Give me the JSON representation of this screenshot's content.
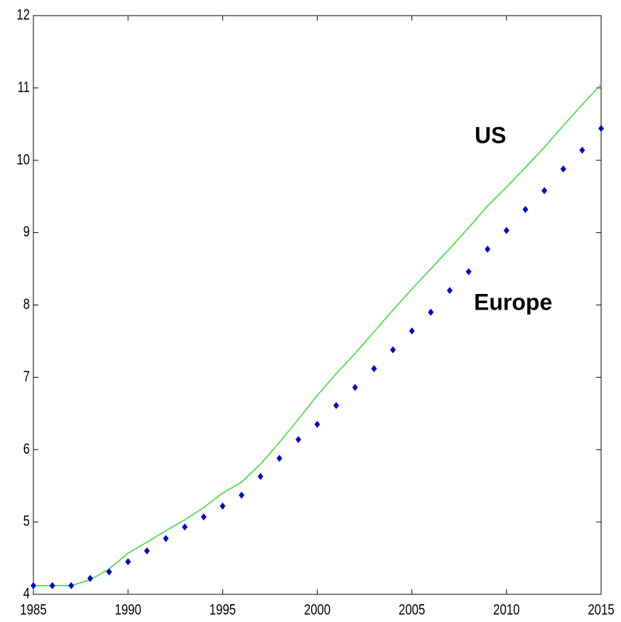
{
  "chart_data": {
    "type": "line",
    "x": [
      1985,
      1986,
      1987,
      1988,
      1989,
      1990,
      1991,
      1992,
      1993,
      1994,
      1995,
      1996,
      1997,
      1998,
      1999,
      2000,
      2001,
      2002,
      2003,
      2004,
      2005,
      2006,
      2007,
      2008,
      2009,
      2010,
      2011,
      2012,
      2013,
      2014,
      2015
    ],
    "series": [
      {
        "name": "US",
        "color": "#33dd33",
        "style": "line",
        "values": [
          4.12,
          4.12,
          4.12,
          4.2,
          4.35,
          4.57,
          4.72,
          4.88,
          5.03,
          5.2,
          5.4,
          5.55,
          5.8,
          6.1,
          6.42,
          6.75,
          7.05,
          7.33,
          7.63,
          7.93,
          8.22,
          8.5,
          8.78,
          9.07,
          9.37,
          9.63,
          9.9,
          10.18,
          10.48,
          10.77,
          11.05
        ]
      },
      {
        "name": "Europe",
        "color": "#0000cc",
        "style": "markers",
        "values": [
          4.12,
          4.12,
          4.12,
          4.22,
          4.31,
          4.45,
          4.6,
          4.77,
          4.93,
          5.07,
          5.22,
          5.37,
          5.63,
          5.88,
          6.14,
          6.35,
          6.61,
          6.86,
          7.12,
          7.38,
          7.64,
          7.9,
          8.2,
          8.46,
          8.77,
          9.03,
          9.32,
          9.58,
          9.88,
          10.14,
          10.44
        ]
      }
    ],
    "xlim": [
      1985,
      2015
    ],
    "xticks": [
      1985,
      1990,
      1995,
      2000,
      2005,
      2010,
      2015
    ],
    "ylim": [
      4,
      12
    ],
    "yticks": [
      4,
      5,
      6,
      7,
      8,
      9,
      10,
      11,
      12
    ],
    "grid": false
  }
}
